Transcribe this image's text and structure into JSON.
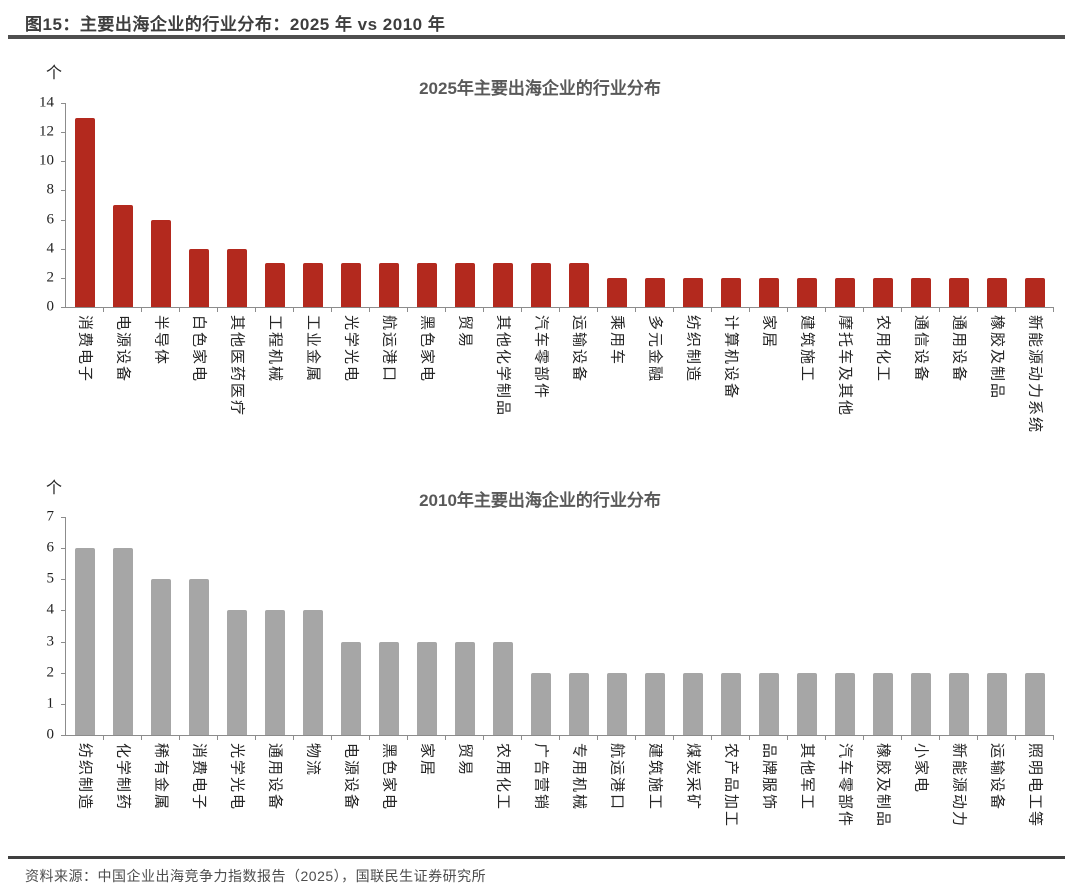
{
  "header": {
    "title": "图15：主要出海企业的行业分布：2025 年 vs 2010 年"
  },
  "footer": {
    "source": "资料来源：中国企业出海竞争力指数报告（2025），国联民生证券研究所"
  },
  "chart_data": [
    {
      "type": "bar",
      "title": "2025年主要出海企业的行业分布",
      "unit_label": "个",
      "xlabel": "",
      "ylabel": "个",
      "bar_color": "#b3291e",
      "ylim": [
        0,
        14
      ],
      "ytick_step": 2,
      "yticks": [
        0,
        2,
        4,
        6,
        8,
        10,
        12,
        14
      ],
      "grid": false,
      "legend": "none",
      "categories": [
        "消费电子",
        "电源设备",
        "半导体",
        "白色家电",
        "其他医药医疗",
        "工程机械",
        "工业金属",
        "光学光电",
        "航运港口",
        "黑色家电",
        "贸易",
        "其他化学制品",
        "汽车零部件",
        "运输设备",
        "乘用车",
        "多元金融",
        "纺织制造",
        "计算机设备",
        "家居",
        "建筑施工",
        "摩托车及其他",
        "农用化工",
        "通信设备",
        "通用设备",
        "橡胶及制品",
        "新能源动力系统"
      ],
      "values": [
        13,
        7,
        6,
        4,
        4,
        3,
        3,
        3,
        3,
        3,
        3,
        3,
        3,
        3,
        2,
        2,
        2,
        2,
        2,
        2,
        2,
        2,
        2,
        2,
        2,
        2
      ]
    },
    {
      "type": "bar",
      "title": "2010年主要出海企业的行业分布",
      "unit_label": "个",
      "xlabel": "",
      "ylabel": "个",
      "bar_color": "#a6a6a6",
      "ylim": [
        0,
        7
      ],
      "ytick_step": 1,
      "yticks": [
        0,
        1,
        2,
        3,
        4,
        5,
        6,
        7
      ],
      "grid": false,
      "legend": "none",
      "categories": [
        "纺织制造",
        "化学制药",
        "稀有金属",
        "消费电子",
        "光学光电",
        "通用设备",
        "物流",
        "电源设备",
        "黑色家电",
        "家居",
        "贸易",
        "农用化工",
        "广告营销",
        "专用机械",
        "航运港口",
        "建筑施工",
        "煤炭采矿",
        "农产品加工",
        "品牌服饰",
        "其他军工",
        "汽车零部件",
        "橡胶及制品",
        "小家电",
        "新能源动力",
        "运输设备",
        "照明电工等"
      ],
      "values": [
        6,
        6,
        5,
        5,
        4,
        4,
        4,
        3,
        3,
        3,
        3,
        3,
        2,
        2,
        2,
        2,
        2,
        2,
        2,
        2,
        2,
        2,
        2,
        2,
        2,
        2
      ]
    }
  ]
}
